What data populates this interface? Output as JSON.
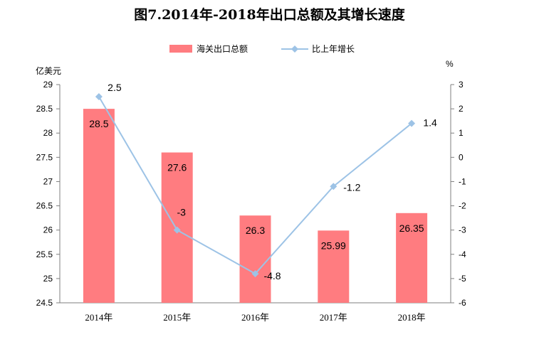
{
  "chart_data": {
    "type": "bar+line",
    "title": "图7.2014年-2018年出口总额及其增长速度",
    "categories": [
      "2014年",
      "2015年",
      "2016年",
      "2017年",
      "2018年"
    ],
    "bar_series": {
      "name": "海关出口总额",
      "unit": "亿美元",
      "values": [
        28.5,
        27.6,
        26.3,
        25.99,
        26.35
      ],
      "labels": [
        "28.5",
        "27.6",
        "26.3",
        "25.99",
        "26.35"
      ],
      "color": "#FF7C80"
    },
    "line_series": {
      "name": "比上年增长",
      "unit": "%",
      "values": [
        2.5,
        -3,
        -4.8,
        -1.2,
        1.4
      ],
      "labels": [
        "2.5",
        "-3",
        "-4.8",
        "-1.2",
        "1.4"
      ],
      "color": "#9DC3E6"
    },
    "y_left": {
      "min": 24.5,
      "max": 29,
      "step": 0.5,
      "ticks": [
        "24.5",
        "25",
        "25.5",
        "26",
        "26.5",
        "27",
        "27.5",
        "28",
        "28.5",
        "29"
      ]
    },
    "y_right": {
      "min": -6,
      "max": 3,
      "step": 1,
      "ticks": [
        "-6",
        "-5",
        "-4",
        "-3",
        "-2",
        "-1",
        "0",
        "1",
        "2",
        "3"
      ]
    },
    "legend_position": "top"
  }
}
